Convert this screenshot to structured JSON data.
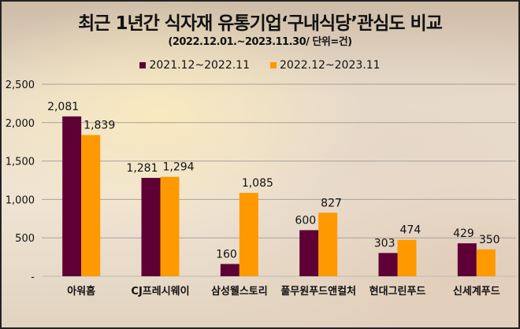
{
  "chart_data": {
    "type": "bar",
    "title": "최근 1년간 식자재 유통기업‘구내식당’관심도 비교",
    "subtitle": "(2022.12.01.~2023.11.30/ 단위=건)",
    "categories": [
      "아워홈",
      "CJ프레시웨이",
      "삼성웰스토리",
      "풀무원푸드앤컬처",
      "현대그린푸드",
      "신세계푸드"
    ],
    "series": [
      {
        "name": "2021.12~2022.11",
        "color": "#5e0035",
        "values": [
          2081,
          1281,
          160,
          600,
          303,
          429
        ],
        "labels": [
          "2,081",
          "1,281",
          "160",
          "600",
          "303",
          "429"
        ]
      },
      {
        "name": "2022.12~2023.11",
        "color": "#ff9900",
        "values": [
          1839,
          1294,
          1085,
          827,
          474,
          350
        ],
        "labels": [
          "1,839",
          "1,294",
          "1,085",
          "827",
          "474",
          "350"
        ]
      }
    ],
    "ylim": [
      0,
      2500
    ],
    "yticks": [
      0,
      500,
      1000,
      1500,
      2000,
      2500
    ],
    "ytick_labels": [
      "-",
      "500",
      "1,000",
      "1,500",
      "2,000",
      "2,500"
    ],
    "grid": true,
    "legend": "top-center",
    "xlabel": "",
    "ylabel": ""
  }
}
